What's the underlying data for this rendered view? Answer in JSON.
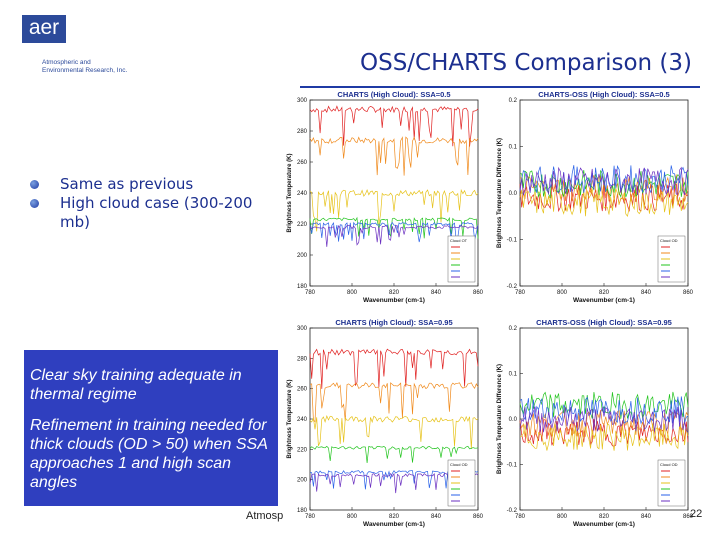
{
  "logo": {
    "text": "aer",
    "subtitle_line1": "Atmospheric and",
    "subtitle_line2": "Environmental Research, Inc."
  },
  "title": "OSS/CHARTS Comparison (3)",
  "bullets": [
    "Same as previous",
    "High cloud case (300-200 mb)"
  ],
  "note": {
    "para1": "Clear sky training adequate in thermal regime",
    "para2": "Refinement in training needed for thick clouds  (OD > 50) when SSA approaches 1 and high scan angles"
  },
  "footer": "Atmosp",
  "page_number": "22",
  "colors": {
    "title": "#1c2f8f",
    "note_bg": "#2f3fbf",
    "rule": "#1f3aa4"
  },
  "chart_data": [
    {
      "type": "line",
      "title": "CHARTS (High Cloud): SSA=0.5",
      "xlabel": "Wavenumber (cm-1)",
      "ylabel": "Brightness Temperature (K)",
      "xlim": [
        780,
        860
      ],
      "ylim": [
        180,
        300
      ],
      "xticks": [
        "780",
        "800",
        "820",
        "840",
        "860"
      ],
      "yticks": [
        "300",
        "280",
        "260",
        "240",
        "220",
        "200",
        "180"
      ],
      "legend_title": "Cloud OT",
      "series": [
        {
          "color": "#e02020",
          "level": 294,
          "noise": 2
        },
        {
          "color": "#f08a1c",
          "level": 274,
          "noise": 2
        },
        {
          "color": "#e6c21a",
          "level": 240,
          "noise": 2
        },
        {
          "color": "#22c41e",
          "level": 223,
          "noise": 1
        },
        {
          "color": "#2a62e8",
          "level": 220,
          "noise": 1
        },
        {
          "color": "#6a2fc0",
          "level": 218,
          "noise": 1
        }
      ]
    },
    {
      "type": "line",
      "title": "CHARTS-OSS (High Cloud): SSA=0.5",
      "xlabel": "Wavenumber (cm-1)",
      "ylabel": "Brightness Temperature Difference (K)",
      "xlim": [
        780,
        860
      ],
      "ylim": [
        -0.2,
        0.2
      ],
      "xticks": [
        "780",
        "800",
        "820",
        "840",
        "860"
      ],
      "yticks": [
        "0.2",
        "0.1",
        "0.0",
        "-0.1",
        "-0.2"
      ],
      "legend_title": "Cloud OD",
      "series": [
        {
          "color": "#e02020",
          "level": -0.01,
          "noise": 0.03
        },
        {
          "color": "#f08a1c",
          "level": 0.01,
          "noise": 0.03
        },
        {
          "color": "#e6c21a",
          "level": -0.02,
          "noise": 0.03
        },
        {
          "color": "#22c41e",
          "level": 0.02,
          "noise": 0.03
        },
        {
          "color": "#2a62e8",
          "level": 0.03,
          "noise": 0.03
        },
        {
          "color": "#6a2fc0",
          "level": 0.025,
          "noise": 0.03
        }
      ]
    },
    {
      "type": "line",
      "title": "CHARTS (High Cloud): SSA=0.95",
      "xlabel": "Wavenumber (cm-1)",
      "ylabel": "Brightness Temperature (K)",
      "xlim": [
        780,
        860
      ],
      "ylim": [
        180,
        300
      ],
      "xticks": [
        "780",
        "800",
        "820",
        "840",
        "860"
      ],
      "yticks": [
        "300",
        "280",
        "260",
        "240",
        "220",
        "200",
        "180"
      ],
      "legend_title": "Cloud OD",
      "series": [
        {
          "color": "#e02020",
          "level": 284,
          "noise": 2
        },
        {
          "color": "#f08a1c",
          "level": 262,
          "noise": 2
        },
        {
          "color": "#e6c21a",
          "level": 240,
          "noise": 2
        },
        {
          "color": "#22c41e",
          "level": 221,
          "noise": 1
        },
        {
          "color": "#2a62e8",
          "level": 205,
          "noise": 1
        },
        {
          "color": "#6a2fc0",
          "level": 203,
          "noise": 1
        }
      ]
    },
    {
      "type": "line",
      "title": "CHARTS-OSS (High Cloud): SSA=0.95",
      "xlabel": "Wavenumber (cm-1)",
      "ylabel": "Brightness Temperature Difference (K)",
      "xlim": [
        780,
        860
      ],
      "ylim": [
        -0.2,
        0.2
      ],
      "xticks": [
        "780",
        "800",
        "820",
        "840",
        "860"
      ],
      "yticks": [
        "0.2",
        "0.1",
        "0.0",
        "-0.1",
        "-0.2"
      ],
      "legend_title": "Cloud OD",
      "series": [
        {
          "color": "#e02020",
          "level": -0.03,
          "noise": 0.03
        },
        {
          "color": "#f08a1c",
          "level": -0.01,
          "noise": 0.03
        },
        {
          "color": "#e6c21a",
          "level": -0.04,
          "noise": 0.03
        },
        {
          "color": "#22c41e",
          "level": 0.03,
          "noise": 0.03
        },
        {
          "color": "#2a62e8",
          "level": 0.02,
          "noise": 0.03
        },
        {
          "color": "#6a2fc0",
          "level": 0.0,
          "noise": 0.03
        }
      ]
    }
  ]
}
